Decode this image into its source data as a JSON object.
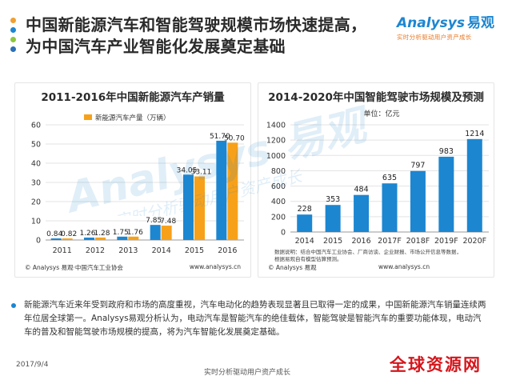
{
  "page": {
    "title": "中国新能源汽车和智能驾驶规模市场快速提高，为中国汽车产业智能化发展奠定基础",
    "date": "2017/9/4",
    "slogan": "实时分析驱动用户资产成长",
    "stamp": "全球资源网",
    "bullet": "新能源汽车近来年受到政府和市场的高度重视，汽车电动化的趋势表现显著且已取得一定的成果，中国新能源汽车销量连续两年位居全球第一。Analysys易观分析认为，电动汽车是智能汽车的绝佳载体，智能驾驶是智能汽车的重要功能体现，电动汽车的普及和智能驾驶市场规模的提高，将为汽车智能化发展奠定基础。"
  },
  "logo": {
    "brand": "nalysys",
    "brand_prefix": "A",
    "cn": "易观",
    "tagline": "实时分析驱动用户资产成长"
  },
  "watermark": {
    "text": "Analysys 易观",
    "sub": "实时分析驱动用户资产成长"
  },
  "colors": {
    "title_dots": [
      "#f0a030",
      "#1c86d1",
      "#8dc63f",
      "#2c6fb5"
    ],
    "bar_blue": "#1c86d1",
    "bar_orange": "#f7a11a",
    "bar_right": "#1c86d1"
  },
  "left_panel": {
    "source": "© Analysys 易观·中国汽车工业协会",
    "site": "www.analysys.cn"
  },
  "right_panel": {
    "unit": "单位：亿元",
    "note": "数据说明：结合中国汽车工业协会、厂商访谈、企业财报、市场公开信息等数据，根据易观自有模型估算预测。",
    "source": "© Analysys 易观",
    "site": "www.analysys.cn"
  },
  "chart_data": [
    {
      "type": "bar",
      "title": "2011-2016年中国新能源汽车产销量",
      "categories": [
        "2011",
        "2012",
        "2013",
        "2014",
        "2015",
        "2016"
      ],
      "series": [
        {
          "name": "",
          "values": [
            0.84,
            1.26,
            1.75,
            7.85,
            34.05,
            51.7
          ],
          "color": "#1c86d1"
        },
        {
          "name": "新能源汽车产量（万辆）",
          "values": [
            0.82,
            1.28,
            1.76,
            7.48,
            33.11,
            50.7
          ],
          "color": "#f7a11a"
        }
      ],
      "ylim": [
        0,
        60
      ],
      "yticks": [
        0,
        10,
        20,
        30,
        40,
        50,
        60
      ],
      "xlabel": "",
      "ylabel": "",
      "grid": true,
      "legend": "top-left"
    },
    {
      "type": "bar",
      "title": "2014-2020年中国智能驾驶市场规模及预测",
      "unit": "单位：亿元",
      "categories": [
        "2014",
        "2015",
        "2016",
        "2017F",
        "2018F",
        "2019F",
        "2020F"
      ],
      "values": [
        228,
        353,
        484,
        635,
        797,
        983,
        1214
      ],
      "ylim": [
        0,
        1400
      ],
      "yticks": [
        0,
        200,
        400,
        600,
        800,
        1000,
        1200,
        1400
      ],
      "xlabel": "",
      "ylabel": "",
      "grid": true
    }
  ]
}
